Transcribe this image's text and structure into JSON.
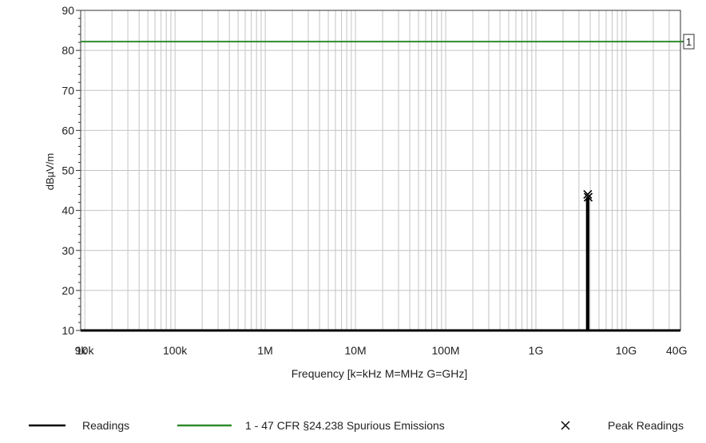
{
  "chart_data": {
    "type": "line",
    "title": "",
    "xlabel": "Frequency [k=kHz M=MHz G=GHz]",
    "ylabel": "dBµV/m",
    "x_scale": "log",
    "xlim": [
      9000,
      40000000000
    ],
    "ylim": [
      10,
      90
    ],
    "grid": true,
    "x_ticks": [
      {
        "value": 9000,
        "label": "9k"
      },
      {
        "value": 10000,
        "label": "10k"
      },
      {
        "value": 100000,
        "label": "100k"
      },
      {
        "value": 1000000,
        "label": "1M"
      },
      {
        "value": 10000000,
        "label": "10M"
      },
      {
        "value": 100000000,
        "label": "100M"
      },
      {
        "value": 1000000000,
        "label": "1G"
      },
      {
        "value": 10000000000,
        "label": "10G"
      },
      {
        "value": 40000000000,
        "label": "40G"
      }
    ],
    "y_ticks": [
      10,
      20,
      30,
      40,
      50,
      60,
      70,
      80,
      90
    ],
    "limit_marker_label": "1",
    "series": [
      {
        "name": "Readings",
        "kind": "line",
        "color": "#000000",
        "x": [
          9000,
          3700000000,
          3700000000,
          3800000000,
          3800000000,
          40000000000
        ],
        "y": [
          10,
          10,
          43,
          43,
          10,
          10
        ]
      },
      {
        "name": "1 - 47 CFR §24.238 Spurious Emissions",
        "kind": "limit",
        "color": "#2e8b2e",
        "x": [
          9000,
          40000000000
        ],
        "y": [
          82.2,
          82.2
        ]
      },
      {
        "name": "Peak Readings",
        "kind": "marker",
        "color": "#000000",
        "x": [
          3750000000,
          3800000000
        ],
        "y": [
          44,
          43.3
        ]
      }
    ],
    "legend": [
      {
        "label": "Readings",
        "symbol": "line",
        "color": "#000000"
      },
      {
        "label": "1 - 47 CFR §24.238 Spurious Emissions",
        "symbol": "line",
        "color": "#2e8b2e"
      },
      {
        "label": "Peak Readings",
        "symbol": "x",
        "color": "#000000"
      }
    ],
    "legend_position": "bottom"
  }
}
